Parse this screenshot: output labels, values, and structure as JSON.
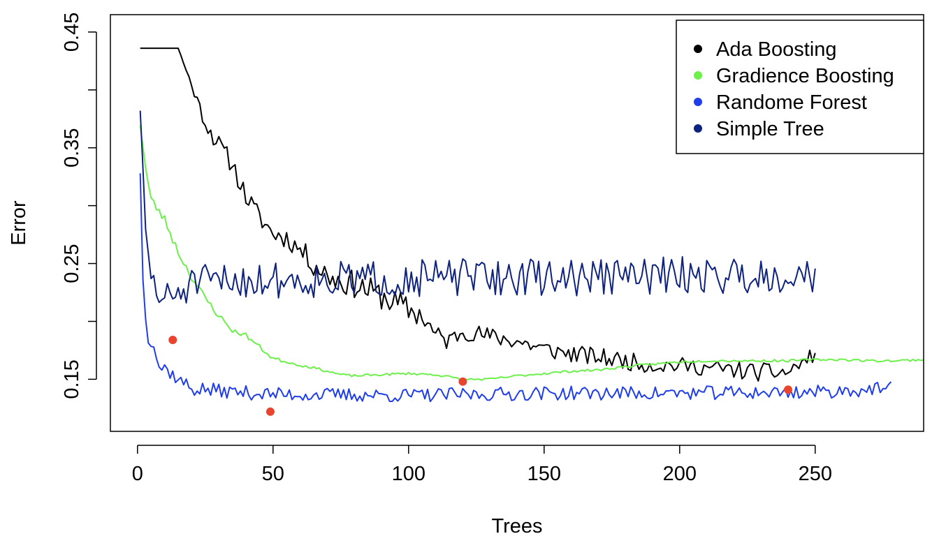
{
  "chart_data": {
    "type": "line",
    "title": "",
    "xlabel": "Trees",
    "ylabel": "Error",
    "xlim": [
      -10,
      290
    ],
    "ylim": [
      0.105,
      0.465
    ],
    "xticks": [
      0,
      50,
      100,
      150,
      200,
      250
    ],
    "xtick_labels": [
      "0",
      "50",
      "100",
      "150",
      "200",
      "250"
    ],
    "yticks": [
      0.15,
      0.2,
      0.25,
      0.3,
      0.35,
      0.4,
      0.45
    ],
    "ytick_labels": [
      "0.15",
      "",
      "0.25",
      "",
      "0.35",
      "",
      "0.45"
    ],
    "grid": false,
    "legend_position": "top-right",
    "series": [
      {
        "name": "Ada Boosting",
        "color": "#000000",
        "x_range": [
          1,
          250
        ],
        "anchors": [
          [
            1,
            0.436
          ],
          [
            15,
            0.436
          ],
          [
            20,
            0.404
          ],
          [
            25,
            0.372
          ],
          [
            30,
            0.352
          ],
          [
            35,
            0.336
          ],
          [
            40,
            0.308
          ],
          [
            45,
            0.29
          ],
          [
            50,
            0.276
          ],
          [
            55,
            0.272
          ],
          [
            60,
            0.262
          ],
          [
            65,
            0.25
          ],
          [
            70,
            0.24
          ],
          [
            75,
            0.235
          ],
          [
            80,
            0.232
          ],
          [
            90,
            0.222
          ],
          [
            100,
            0.21
          ],
          [
            105,
            0.205
          ],
          [
            110,
            0.188
          ],
          [
            115,
            0.183
          ],
          [
            120,
            0.192
          ],
          [
            130,
            0.187
          ],
          [
            140,
            0.183
          ],
          [
            150,
            0.176
          ],
          [
            160,
            0.172
          ],
          [
            170,
            0.169
          ],
          [
            180,
            0.166
          ],
          [
            190,
            0.162
          ],
          [
            200,
            0.162
          ],
          [
            210,
            0.16
          ],
          [
            220,
            0.158
          ],
          [
            230,
            0.156
          ],
          [
            240,
            0.156
          ],
          [
            250,
            0.172
          ]
        ],
        "noise": [
          0,
          0,
          0.004,
          0.007,
          0.009,
          0.009,
          0.009,
          0.009,
          0.009,
          0.009,
          0.009,
          0.011,
          0.012,
          0.012,
          0.012,
          0.012,
          0.012,
          0.011,
          0.009,
          0.009,
          0.008,
          0.008,
          0.008,
          0.008,
          0.008,
          0.008,
          0.008,
          0.007,
          0.007,
          0.007,
          0.008,
          0.008,
          0.008,
          0.006
        ],
        "seed": 11
      },
      {
        "name": "Gradience Boosting",
        "color": "#6CF04A",
        "x_range": [
          1,
          290
        ],
        "anchors": [
          [
            1,
            0.372
          ],
          [
            3,
            0.332
          ],
          [
            5,
            0.305
          ],
          [
            10,
            0.288
          ],
          [
            15,
            0.26
          ],
          [
            20,
            0.238
          ],
          [
            25,
            0.22
          ],
          [
            30,
            0.205
          ],
          [
            35,
            0.192
          ],
          [
            40,
            0.188
          ],
          [
            45,
            0.178
          ],
          [
            50,
            0.168
          ],
          [
            55,
            0.165
          ],
          [
            60,
            0.162
          ],
          [
            65,
            0.16
          ],
          [
            70,
            0.157
          ],
          [
            75,
            0.154
          ],
          [
            80,
            0.153
          ],
          [
            90,
            0.154
          ],
          [
            100,
            0.155
          ],
          [
            110,
            0.154
          ],
          [
            120,
            0.15
          ],
          [
            130,
            0.15
          ],
          [
            140,
            0.153
          ],
          [
            150,
            0.155
          ],
          [
            160,
            0.157
          ],
          [
            170,
            0.158
          ],
          [
            180,
            0.161
          ],
          [
            190,
            0.163
          ],
          [
            200,
            0.165
          ],
          [
            210,
            0.166
          ],
          [
            220,
            0.166
          ],
          [
            230,
            0.166
          ],
          [
            240,
            0.166
          ],
          [
            250,
            0.167
          ],
          [
            260,
            0.167
          ],
          [
            270,
            0.166
          ],
          [
            280,
            0.166
          ],
          [
            290,
            0.167
          ]
        ],
        "noise": [
          0.005,
          0.005,
          0.004,
          0.004,
          0.004,
          0.003,
          0.003,
          0.003,
          0.002,
          0.002,
          0.002,
          0.002,
          0.001,
          0.001,
          0.001,
          0.001,
          0.001,
          0.001,
          0.001,
          0.001,
          0.001,
          0.001,
          0.001,
          0.001,
          0.001,
          0.001,
          0.001,
          0.001,
          0.001,
          0.001,
          0.001,
          0.001,
          0.001,
          0.001,
          0.001,
          0.001,
          0.001,
          0.001,
          0.001
        ],
        "seed": 23
      },
      {
        "name": "Randome Forest",
        "color": "#1F3DEB",
        "x_range": [
          1,
          278
        ],
        "anchors": [
          [
            1,
            0.328
          ],
          [
            2,
            0.235
          ],
          [
            3,
            0.205
          ],
          [
            4,
            0.185
          ],
          [
            6,
            0.18
          ],
          [
            8,
            0.16
          ],
          [
            10,
            0.16
          ],
          [
            15,
            0.15
          ],
          [
            20,
            0.142
          ],
          [
            30,
            0.14
          ],
          [
            50,
            0.137
          ],
          [
            100,
            0.136
          ],
          [
            150,
            0.138
          ],
          [
            200,
            0.138
          ],
          [
            250,
            0.139
          ],
          [
            278,
            0.142
          ]
        ],
        "noise": [
          0,
          0.004,
          0.004,
          0.004,
          0.005,
          0.006,
          0.006,
          0.006,
          0.007,
          0.006,
          0.006,
          0.006,
          0.006,
          0.006,
          0.006,
          0.006
        ],
        "seed": 37
      },
      {
        "name": "Simple Tree",
        "color": "#0E2280",
        "x_range": [
          1,
          250
        ],
        "anchors": [
          [
            1,
            0.382
          ],
          [
            3,
            0.275
          ],
          [
            5,
            0.24
          ],
          [
            8,
            0.22
          ],
          [
            12,
            0.22
          ],
          [
            20,
            0.232
          ],
          [
            40,
            0.236
          ],
          [
            80,
            0.236
          ],
          [
            120,
            0.238
          ],
          [
            160,
            0.238
          ],
          [
            200,
            0.24
          ],
          [
            250,
            0.24
          ]
        ],
        "noise": [
          0,
          0.01,
          0.012,
          0.013,
          0.015,
          0.016,
          0.016,
          0.016,
          0.016,
          0.016,
          0.016,
          0.016
        ],
        "seed": 51
      }
    ],
    "minimum_points": {
      "color": "#E8442E",
      "points": [
        [
          13,
          0.184
        ],
        [
          49,
          0.122
        ],
        [
          120,
          0.148
        ],
        [
          240,
          0.141
        ]
      ]
    },
    "legend": {
      "entries": [
        {
          "label": "Ada Boosting",
          "color": "#000000"
        },
        {
          "label": "Gradience Boosting",
          "color": "#6CF04A"
        },
        {
          "label": "Randome Forest",
          "color": "#1F3DEB"
        },
        {
          "label": "Simple Tree",
          "color": "#0E2280"
        }
      ]
    }
  }
}
